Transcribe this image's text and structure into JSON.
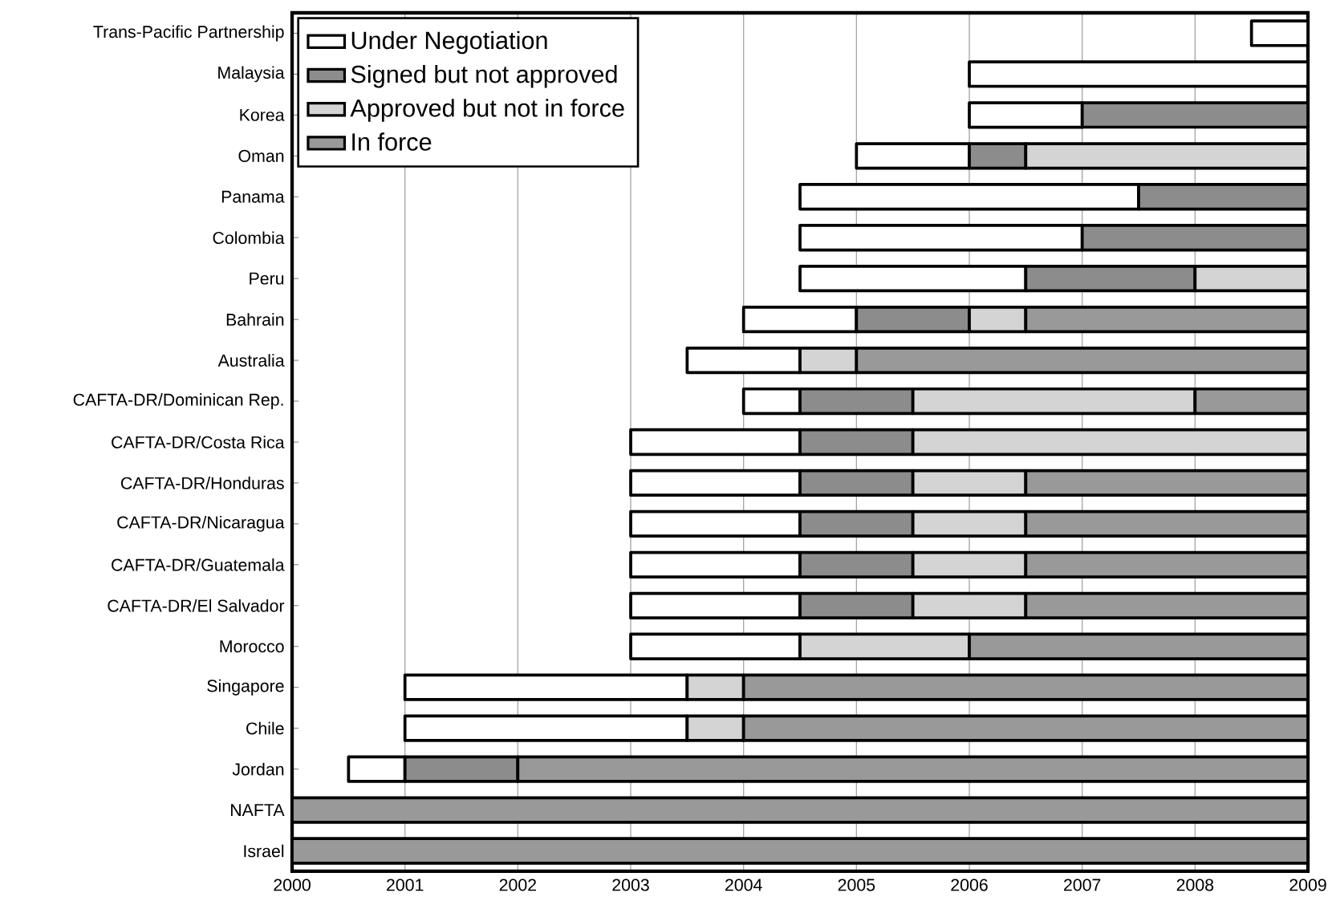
{
  "chart_data": {
    "type": "bar",
    "orientation": "horizontal",
    "categories": [
      "Trans-Pacific Partnership",
      "Malaysia",
      "Korea",
      "Oman",
      "Panama",
      "Colombia",
      "Peru",
      "Bahrain",
      "Australia",
      "CAFTA-DR/Dominican Rep.",
      "CAFTA-DR/Costa Rica",
      "CAFTA-DR/Honduras",
      "CAFTA-DR/Nicaragua",
      "CAFTA-DR/Guatemala",
      "CAFTA-DR/El Salvador",
      "Morocco",
      "Singapore",
      "Chile",
      "Jordan",
      "NAFTA",
      "Israel"
    ],
    "series": [
      {
        "name": "Under  Negotiation",
        "color": "#ffffff",
        "base": [
          2008.5,
          2006,
          2006,
          2005,
          2004.5,
          2004.5,
          2004.5,
          2004,
          2003.5,
          2004,
          2003,
          2003,
          2003,
          2003,
          2003,
          2003,
          2001,
          2001,
          2000.5,
          null,
          null
        ],
        "values": [
          0.5,
          3,
          1,
          1,
          3,
          2.5,
          2,
          1,
          1,
          0.5,
          1.5,
          1.5,
          1.5,
          1.5,
          1.5,
          1.5,
          2.5,
          2.5,
          0.5,
          null,
          null
        ]
      },
      {
        "name": "Signed but not approved",
        "color": "#8c8c8c",
        "base": [
          null,
          null,
          2007,
          2006,
          2007.5,
          2007,
          2006.5,
          2005,
          null,
          2004.5,
          2004.5,
          2004.5,
          2004.5,
          2004.5,
          2004.5,
          null,
          null,
          null,
          2001,
          null,
          null
        ],
        "values": [
          null,
          null,
          2,
          0.5,
          1.5,
          2,
          1.5,
          1,
          null,
          1,
          1,
          1,
          1,
          1,
          1,
          null,
          null,
          null,
          1,
          null,
          null
        ]
      },
      {
        "name": "Approved but not in force",
        "color": "#d4d4d4",
        "base": [
          null,
          null,
          null,
          2006.5,
          null,
          null,
          2008,
          2006,
          2004.5,
          2005.5,
          2005.5,
          2005.5,
          2005.5,
          2005.5,
          2005.5,
          2004.5,
          2003.5,
          2003.5,
          null,
          null,
          null
        ],
        "values": [
          null,
          null,
          null,
          2.5,
          null,
          null,
          1,
          0.5,
          0.5,
          2.5,
          3.5,
          1,
          1,
          1,
          1,
          1.5,
          0.5,
          0.5,
          null,
          null,
          null
        ]
      },
      {
        "name": "In force",
        "color": "#999999",
        "base": [
          null,
          null,
          null,
          null,
          null,
          null,
          null,
          2006.5,
          2005,
          2008,
          null,
          2006.5,
          2006.5,
          2006.5,
          2006.5,
          2006,
          2004,
          2004,
          2002,
          2000,
          2000
        ],
        "values": [
          null,
          null,
          null,
          null,
          null,
          null,
          null,
          2.5,
          4,
          1,
          null,
          2.5,
          2.5,
          2.5,
          2.5,
          3,
          5,
          5,
          7,
          9,
          9
        ]
      }
    ],
    "xlim": [
      2000,
      2009
    ],
    "xticks": [
      2000,
      2001,
      2002,
      2003,
      2004,
      2005,
      2006,
      2007,
      2008,
      2009
    ],
    "grid": "x",
    "legend": "top left"
  }
}
